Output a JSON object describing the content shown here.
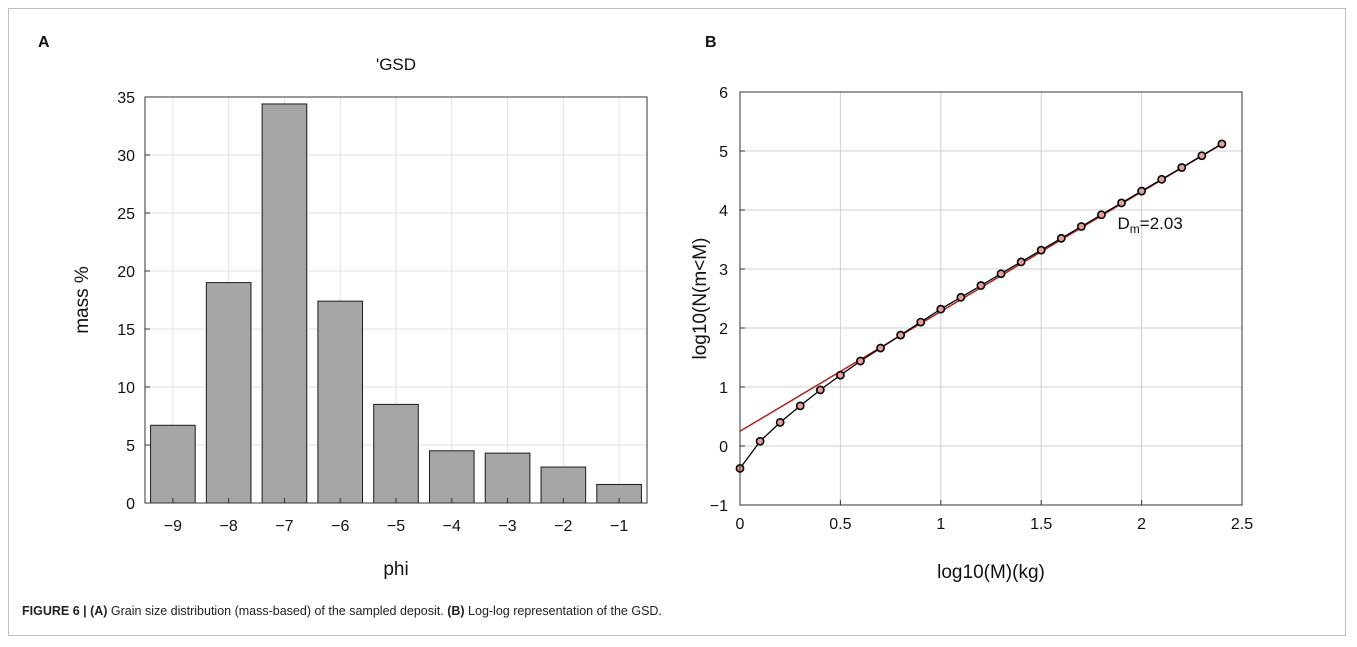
{
  "figure": {
    "panel_a_label": "A",
    "panel_b_label": "B",
    "caption": {
      "figure_label": "FIGURE 6 | ",
      "part_a_tag": "(A)",
      "part_a_text": " Grain size distribution (mass-based) of the sampled deposit. ",
      "part_b_tag": "(B)",
      "part_b_text": " Log-log representation of the GSD."
    }
  },
  "chart_data": [
    {
      "type": "bar",
      "title": "'GSD",
      "xlabel": "phi",
      "ylabel": "mass %",
      "categories": [
        "-9",
        "-8",
        "-7",
        "-6",
        "-5",
        "-4",
        "-3",
        "-2",
        "-1"
      ],
      "values": [
        6.7,
        19.0,
        34.4,
        17.4,
        8.5,
        4.5,
        4.3,
        3.1,
        1.6
      ],
      "ylim": [
        0,
        35
      ],
      "yticks": [
        0,
        5,
        10,
        15,
        20,
        25,
        30,
        35
      ],
      "grid": true,
      "bar_color": "#a6a6a6"
    },
    {
      "type": "line",
      "title": "",
      "xlabel": "log10(M)(kg)",
      "ylabel": "log10(N(m<M)",
      "xlim": [
        0,
        2.5
      ],
      "ylim": [
        -1,
        6
      ],
      "xticks": [
        0,
        0.5,
        1,
        1.5,
        2,
        2.5
      ],
      "yticks": [
        -1,
        0,
        1,
        2,
        3,
        4,
        5,
        6
      ],
      "grid": true,
      "series": [
        {
          "x": [
            0,
            0.1,
            0.2,
            0.3,
            0.4,
            0.5,
            0.6,
            0.7,
            0.8,
            0.9,
            1.0,
            1.1,
            1.2,
            1.3,
            1.4,
            1.5,
            1.6,
            1.7,
            1.8,
            1.9,
            2.0,
            2.1,
            2.2,
            2.3,
            2.4
          ],
          "y": [
            -0.38,
            0.08,
            0.4,
            0.68,
            0.95,
            1.2,
            1.44,
            1.66,
            1.88,
            2.1,
            2.32,
            2.52,
            2.72,
            2.92,
            3.12,
            3.32,
            3.52,
            3.72,
            3.92,
            4.12,
            4.32,
            4.52,
            4.72,
            4.92,
            5.12
          ],
          "color": "#000000",
          "marker": "circle",
          "marker_fill": "#e3a09a"
        }
      ],
      "fit_line": {
        "x": [
          0,
          2.4
        ],
        "y": [
          0.25,
          5.12
        ],
        "color": "#b22222"
      },
      "annotation": {
        "main": "D",
        "sub": "m",
        "rest": "=2.03",
        "x": 1.88,
        "y": 3.68
      }
    }
  ]
}
